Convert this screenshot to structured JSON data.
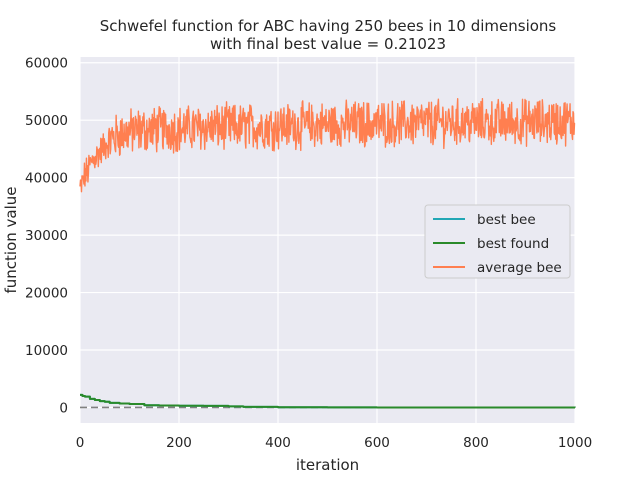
{
  "chart_data": {
    "type": "line",
    "title_line1": "Schwefel function for ABC having 250 bees in 10 dimensions",
    "title_line2": "with final best value = 0.21023",
    "xlabel": "iteration",
    "ylabel": "function value",
    "xlim": [
      0,
      1000
    ],
    "ylim": [
      -2700,
      61000
    ],
    "xticks": [
      "0",
      "200",
      "400",
      "600",
      "800",
      "1000"
    ],
    "yticks": [
      "0",
      "10000",
      "20000",
      "30000",
      "40000",
      "50000",
      "60000"
    ],
    "grid": true,
    "legend_position": "center-right",
    "reference_line": {
      "y": 0,
      "style": "dashed",
      "color": "#808080"
    },
    "series": [
      {
        "name": "best bee",
        "color": "#22a7b5",
        "x": [
          0,
          5,
          10,
          20,
          30,
          40,
          50,
          60,
          80,
          100,
          130,
          160,
          200,
          250,
          300,
          330,
          400,
          500,
          600,
          700,
          800,
          900,
          1000
        ],
        "values": [
          2200,
          2000,
          1900,
          1500,
          1300,
          1100,
          1000,
          800,
          700,
          600,
          400,
          350,
          300,
          280,
          200,
          100,
          40,
          10,
          5,
          2,
          1,
          0.5,
          0.21
        ]
      },
      {
        "name": "best found",
        "color": "#2a8a2a",
        "x": [
          0,
          5,
          10,
          20,
          30,
          40,
          50,
          60,
          80,
          100,
          130,
          160,
          200,
          250,
          300,
          330,
          400,
          500,
          600,
          700,
          800,
          900,
          1000
        ],
        "values": [
          2200,
          2000,
          1900,
          1500,
          1300,
          1100,
          1000,
          800,
          700,
          600,
          400,
          350,
          300,
          280,
          200,
          100,
          40,
          10,
          5,
          2,
          1,
          0.5,
          0.21
        ]
      },
      {
        "name": "average bee",
        "color": "#ff7f50",
        "x": [
          0,
          5,
          10,
          15,
          20,
          25,
          30,
          40,
          50,
          60,
          70,
          80,
          100,
          120,
          140,
          160,
          200,
          250,
          300,
          350,
          400,
          450,
          500,
          550,
          580,
          600,
          650,
          700,
          750,
          800,
          850,
          900,
          950,
          1000
        ],
        "values": [
          38000,
          39000,
          40500,
          41000,
          42000,
          43000,
          43500,
          44500,
          45500,
          46500,
          47000,
          47500,
          48000,
          48200,
          48300,
          48400,
          48500,
          48700,
          48800,
          48900,
          49000,
          49100,
          49200,
          49300,
          49400,
          49400,
          49500,
          49500,
          49600,
          49600,
          49600,
          49700,
          49700,
          49800
        ],
        "noise_amplitude": 3500
      }
    ]
  }
}
